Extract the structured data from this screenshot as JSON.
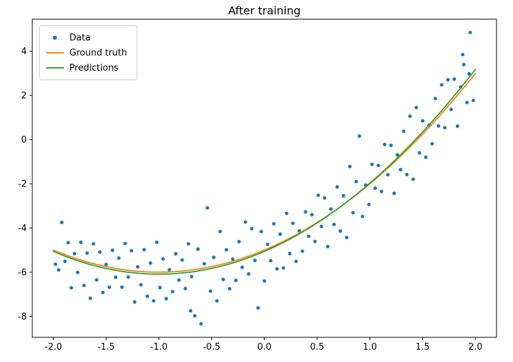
{
  "chart_data": {
    "type": "scatter",
    "title": "After training",
    "xlabel": "",
    "ylabel": "",
    "grid": false,
    "legend_position": "upper left",
    "xlim": [
      -2.2,
      2.2
    ],
    "ylim": [
      -8.95,
      5.45
    ],
    "xticks": {
      "values": [
        -2.0,
        -1.5,
        -1.0,
        -0.5,
        0.0,
        0.5,
        1.0,
        1.5,
        2.0
      ],
      "labels": [
        "-2.0",
        "-1.5",
        "-1.0",
        "-0.5",
        "0.0",
        "0.5",
        "1.0",
        "1.5",
        "2.0"
      ]
    },
    "yticks": {
      "values": [
        -8,
        -6,
        -4,
        -2,
        0,
        2,
        4
      ],
      "labels": [
        "-8",
        "-6",
        "-4",
        "-2",
        "0",
        "2",
        "4"
      ]
    },
    "scatter": {
      "name": "Data",
      "color": "#1f77b4",
      "marker": "dot",
      "points": [
        [
          -1.98,
          -5.64
        ],
        [
          -1.95,
          -5.9
        ],
        [
          -1.92,
          -3.75
        ],
        [
          -1.89,
          -5.51
        ],
        [
          -1.86,
          -4.66
        ],
        [
          -1.83,
          -6.71
        ],
        [
          -1.8,
          -5.16
        ],
        [
          -1.77,
          -6.01
        ],
        [
          -1.74,
          -4.65
        ],
        [
          -1.71,
          -6.6
        ],
        [
          -1.68,
          -5.14
        ],
        [
          -1.65,
          -7.18
        ],
        [
          -1.62,
          -4.72
        ],
        [
          -1.59,
          -6.35
        ],
        [
          -1.56,
          -5.09
        ],
        [
          -1.53,
          -6.92
        ],
        [
          -1.5,
          -5.65
        ],
        [
          -1.47,
          -6.68
        ],
        [
          -1.44,
          -5.01
        ],
        [
          -1.41,
          -6.23
        ],
        [
          -1.38,
          -5.36
        ],
        [
          -1.35,
          -6.68
        ],
        [
          -1.32,
          -4.7
        ],
        [
          -1.29,
          -6.22
        ],
        [
          -1.26,
          -5.03
        ],
        [
          -1.23,
          -7.35
        ],
        [
          -1.2,
          -5.76
        ],
        [
          -1.17,
          -6.57
        ],
        [
          -1.14,
          -4.98
        ],
        [
          -1.11,
          -7.09
        ],
        [
          -1.08,
          -5.59
        ],
        [
          -1.05,
          -7.3
        ],
        [
          -1.02,
          -4.65
        ],
        [
          -0.99,
          -6.7
        ],
        [
          -0.96,
          -5.4
        ],
        [
          -0.93,
          -7.2
        ],
        [
          -0.9,
          -5.89
        ],
        [
          -0.87,
          -6.88
        ],
        [
          -0.84,
          -5.17
        ],
        [
          -0.81,
          -6.36
        ],
        [
          -0.78,
          -5.45
        ],
        [
          -0.75,
          -6.74
        ],
        [
          -0.72,
          -4.72
        ],
        [
          -0.7,
          -7.75
        ],
        [
          -0.69,
          -6.2
        ],
        [
          -0.66,
          -7.98
        ],
        [
          -0.63,
          -4.96
        ],
        [
          -0.6,
          -8.34
        ],
        [
          -0.57,
          -5.62
        ],
        [
          -0.54,
          -3.09
        ],
        [
          -0.51,
          -6.86
        ],
        [
          -0.48,
          -5.33
        ],
        [
          -0.45,
          -7.3
        ],
        [
          -0.42,
          -4.16
        ],
        [
          -0.39,
          -6.33
        ],
        [
          -0.36,
          -4.99
        ],
        [
          -0.33,
          -6.75
        ],
        [
          -0.3,
          -5.41
        ],
        [
          -0.27,
          -6.37
        ],
        [
          -0.24,
          -4.62
        ],
        [
          -0.21,
          -5.78
        ],
        [
          -0.18,
          -3.73
        ],
        [
          -0.15,
          -6.08
        ],
        [
          -0.12,
          -4.03
        ],
        [
          -0.09,
          -5.47
        ],
        [
          -0.06,
          -7.62
        ],
        [
          -0.03,
          -4.16
        ],
        [
          0,
          -6.4
        ],
        [
          0.03,
          -4.74
        ],
        [
          0.06,
          -5.48
        ],
        [
          0.09,
          -3.81
        ],
        [
          0.12,
          -5.85
        ],
        [
          0.15,
          -4.28
        ],
        [
          0.18,
          -5.81
        ],
        [
          0.21,
          -3.34
        ],
        [
          0.24,
          -5.16
        ],
        [
          0.27,
          -3.79
        ],
        [
          0.3,
          -5.51
        ],
        [
          0.33,
          -4.13
        ],
        [
          0.36,
          -5.05
        ],
        [
          0.39,
          -3.27
        ],
        [
          0.42,
          -4.38
        ],
        [
          0.45,
          -3.4
        ],
        [
          0.48,
          -4.61
        ],
        [
          0.51,
          -2.52
        ],
        [
          0.54,
          -3.93
        ],
        [
          0.57,
          -2.64
        ],
        [
          0.6,
          -4.84
        ],
        [
          0.63,
          -3.14
        ],
        [
          0.66,
          -3.84
        ],
        [
          0.69,
          -2.14
        ],
        [
          0.72,
          -4.14
        ],
        [
          0.75,
          -2.54
        ],
        [
          0.78,
          -4.43
        ],
        [
          0.81,
          -1.22
        ],
        [
          0.84,
          -3.31
        ],
        [
          0.87,
          -1.9
        ],
        [
          0.9,
          0.16
        ],
        [
          0.93,
          -3.48
        ],
        [
          0.96,
          -2.06
        ],
        [
          0.99,
          -2.94
        ],
        [
          1.02,
          -1.12
        ],
        [
          1.05,
          -2.2
        ],
        [
          1.08,
          -1.17
        ],
        [
          1.11,
          -2.35
        ],
        [
          1.14,
          -0.22
        ],
        [
          1.17,
          -1.59
        ],
        [
          1.2,
          -0.26
        ],
        [
          1.23,
          -2.43
        ],
        [
          1.26,
          -0.69
        ],
        [
          1.29,
          -1.36
        ],
        [
          1.32,
          0.38
        ],
        [
          1.35,
          -1.58
        ],
        [
          1.38,
          1.06
        ],
        [
          1.41,
          -1.79
        ],
        [
          1.44,
          1.45
        ],
        [
          1.47,
          -0.6
        ],
        [
          1.5,
          0.85
        ],
        [
          1.53,
          -0.8
        ],
        [
          1.56,
          0.65
        ],
        [
          1.59,
          -0.19
        ],
        [
          1.62,
          1.86
        ],
        [
          1.65,
          0.62
        ],
        [
          1.68,
          2.48
        ],
        [
          1.71,
          0.54
        ],
        [
          1.74,
          2.71
        ],
        [
          1.77,
          1.37
        ],
        [
          1.8,
          2.74
        ],
        [
          1.83,
          0.61
        ],
        [
          1.86,
          2.38
        ],
        [
          1.88,
          3.85
        ],
        [
          1.89,
          3.4
        ],
        [
          1.92,
          1.68
        ],
        [
          1.94,
          2.98
        ],
        [
          1.95,
          4.85
        ],
        [
          1.98,
          1.78
        ]
      ]
    },
    "lines": [
      {
        "name": "Ground truth",
        "color": "#ff7f0e",
        "model": "quadratic",
        "coeffs": [
          1.0,
          2.0,
          -5.0
        ],
        "x_range": [
          -2.0,
          2.0
        ]
      },
      {
        "name": "Predictions",
        "color": "#2ca02c",
        "model": "quadratic",
        "coeffs": [
          1.03,
          2.06,
          -5.06
        ],
        "x_range": [
          -2.0,
          2.0
        ]
      }
    ]
  }
}
